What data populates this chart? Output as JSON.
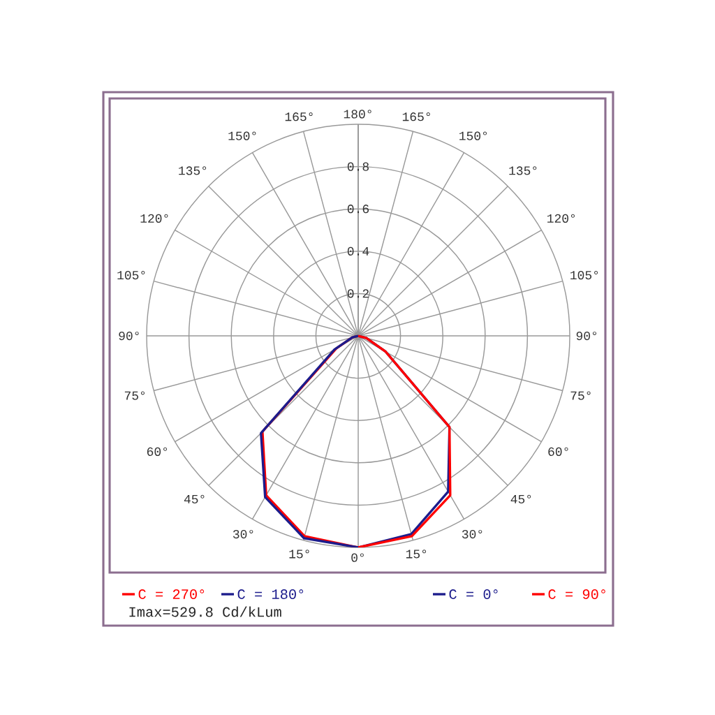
{
  "chart_data": {
    "type": "radar",
    "categories": [
      "180°",
      "165°",
      "150°",
      "135°",
      "120°",
      "105°",
      "90°",
      "75°",
      "60°",
      "45°",
      "30°",
      "15°",
      "0°",
      "15°",
      "30°",
      "45°",
      "60°",
      "75°",
      "90°",
      "105°",
      "120°",
      "135°",
      "150°",
      "165°"
    ],
    "series": [
      {
        "name": "C = 270°",
        "color": "#ff0000",
        "values": [
          null,
          null,
          null,
          null,
          null,
          null,
          null,
          null,
          null,
          null,
          null,
          null,
          1.0,
          0.98,
          0.87,
          0.64,
          0.12,
          0.03,
          0,
          null,
          null,
          null,
          null,
          null
        ]
      },
      {
        "name": "C = 180°",
        "color": "#1c1c8c",
        "values": [
          null,
          null,
          null,
          null,
          null,
          null,
          null,
          null,
          null,
          null,
          null,
          null,
          1.0,
          0.99,
          0.88,
          0.65,
          0.13,
          0.03,
          0,
          null,
          null,
          null,
          null,
          null
        ]
      },
      {
        "name": "C = 0°",
        "color": "#1c1c8c",
        "values": [
          null,
          null,
          null,
          null,
          null,
          null,
          0,
          0.04,
          0.15,
          0.61,
          0.85,
          0.97,
          1.0,
          null,
          null,
          null,
          null,
          null,
          null,
          null,
          null,
          null,
          null,
          null
        ]
      },
      {
        "name": "C = 90°",
        "color": "#ff0000",
        "values": [
          null,
          null,
          null,
          null,
          null,
          null,
          0,
          0.04,
          0.15,
          0.61,
          0.87,
          0.98,
          1.0,
          null,
          null,
          null,
          null,
          null,
          null,
          null,
          null,
          null,
          null,
          null
        ]
      }
    ],
    "ylim": [
      0,
      1
    ],
    "yticks": [
      0.2,
      0.4,
      0.6,
      0.8
    ],
    "grid": true,
    "legend": "bottom",
    "annotations": [
      "Imax=529.8 Cd/kLum"
    ]
  }
}
